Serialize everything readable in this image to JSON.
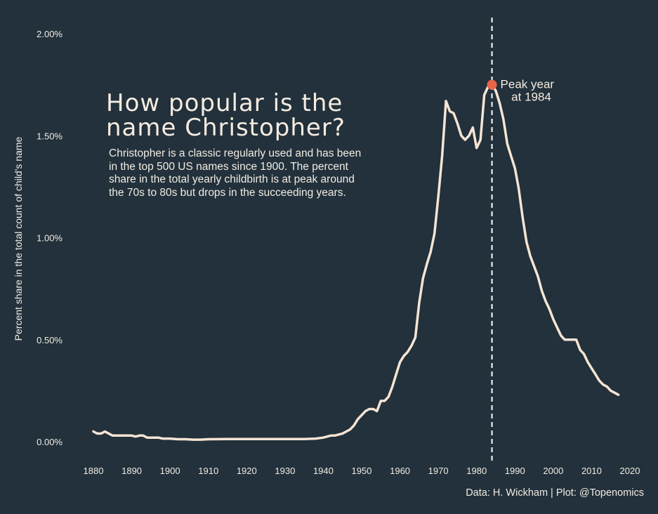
{
  "chart_data": {
    "type": "line",
    "title": "How popular is the name Christopher?",
    "subtitle": "Christopher is a classic regularly used and has been in the top 500 US names since 1900. The percent share in the total yearly childbirth is at peak around the 70s to 80s but drops in the succeeding years.",
    "ylabel": "Percent share in the total count of child's name",
    "xlabel": "",
    "caption": "Data: H. Wickham | Plot: @Topenomics",
    "xlim": [
      1880,
      2017
    ],
    "ylim": [
      0,
      2.0
    ],
    "x_ticks": [
      1880,
      1890,
      1900,
      1910,
      1920,
      1930,
      1940,
      1950,
      1960,
      1970,
      1980,
      1990,
      2000,
      2010,
      2020
    ],
    "y_ticks": [
      0,
      0.5,
      1.0,
      1.5,
      2.0
    ],
    "y_tick_labels": [
      "0.00%",
      "0.50%",
      "1.00%",
      "1.50%",
      "2.00%"
    ],
    "grid": false,
    "legend": "none",
    "series": [
      {
        "color": "#f7e4d4",
        "points": [
          [
            1880,
            0.05
          ],
          [
            1881,
            0.04
          ],
          [
            1882,
            0.04
          ],
          [
            1883,
            0.05
          ],
          [
            1884,
            0.04
          ],
          [
            1885,
            0.03
          ],
          [
            1886,
            0.03
          ],
          [
            1887,
            0.03
          ],
          [
            1888,
            0.03
          ],
          [
            1889,
            0.03
          ],
          [
            1890,
            0.03
          ],
          [
            1891,
            0.025
          ],
          [
            1892,
            0.03
          ],
          [
            1893,
            0.03
          ],
          [
            1894,
            0.02
          ],
          [
            1895,
            0.02
          ],
          [
            1896,
            0.02
          ],
          [
            1897,
            0.02
          ],
          [
            1898,
            0.015
          ],
          [
            1899,
            0.015
          ],
          [
            1900,
            0.015
          ],
          [
            1902,
            0.012
          ],
          [
            1904,
            0.012
          ],
          [
            1906,
            0.01
          ],
          [
            1908,
            0.01
          ],
          [
            1910,
            0.012
          ],
          [
            1915,
            0.013
          ],
          [
            1920,
            0.013
          ],
          [
            1925,
            0.013
          ],
          [
            1930,
            0.013
          ],
          [
            1935,
            0.013
          ],
          [
            1938,
            0.015
          ],
          [
            1940,
            0.02
          ],
          [
            1941,
            0.025
          ],
          [
            1942,
            0.03
          ],
          [
            1943,
            0.03
          ],
          [
            1944,
            0.035
          ],
          [
            1945,
            0.04
          ],
          [
            1946,
            0.05
          ],
          [
            1947,
            0.06
          ],
          [
            1948,
            0.08
          ],
          [
            1949,
            0.11
          ],
          [
            1950,
            0.13
          ],
          [
            1951,
            0.15
          ],
          [
            1952,
            0.16
          ],
          [
            1953,
            0.16
          ],
          [
            1954,
            0.15
          ],
          [
            1955,
            0.2
          ],
          [
            1956,
            0.2
          ],
          [
            1957,
            0.22
          ],
          [
            1958,
            0.27
          ],
          [
            1959,
            0.33
          ],
          [
            1960,
            0.39
          ],
          [
            1961,
            0.42
          ],
          [
            1962,
            0.44
          ],
          [
            1963,
            0.47
          ],
          [
            1964,
            0.51
          ],
          [
            1965,
            0.68
          ],
          [
            1966,
            0.8
          ],
          [
            1967,
            0.87
          ],
          [
            1968,
            0.93
          ],
          [
            1969,
            1.02
          ],
          [
            1970,
            1.2
          ],
          [
            1971,
            1.4
          ],
          [
            1972,
            1.67
          ],
          [
            1973,
            1.62
          ],
          [
            1974,
            1.61
          ],
          [
            1975,
            1.56
          ],
          [
            1976,
            1.5
          ],
          [
            1977,
            1.48
          ],
          [
            1978,
            1.5
          ],
          [
            1979,
            1.54
          ],
          [
            1980,
            1.44
          ],
          [
            1981,
            1.48
          ],
          [
            1982,
            1.7
          ],
          [
            1983,
            1.74
          ],
          [
            1984,
            1.75
          ],
          [
            1985,
            1.72
          ],
          [
            1986,
            1.66
          ],
          [
            1987,
            1.58
          ],
          [
            1988,
            1.46
          ],
          [
            1989,
            1.4
          ],
          [
            1990,
            1.34
          ],
          [
            1991,
            1.24
          ],
          [
            1992,
            1.1
          ],
          [
            1993,
            0.98
          ],
          [
            1994,
            0.91
          ],
          [
            1995,
            0.86
          ],
          [
            1996,
            0.81
          ],
          [
            1997,
            0.74
          ],
          [
            1998,
            0.69
          ],
          [
            1999,
            0.65
          ],
          [
            2000,
            0.6
          ],
          [
            2001,
            0.56
          ],
          [
            2002,
            0.52
          ],
          [
            2003,
            0.5
          ],
          [
            2004,
            0.5
          ],
          [
            2005,
            0.5
          ],
          [
            2006,
            0.5
          ],
          [
            2007,
            0.45
          ],
          [
            2008,
            0.43
          ],
          [
            2009,
            0.39
          ],
          [
            2010,
            0.36
          ],
          [
            2011,
            0.33
          ],
          [
            2012,
            0.3
          ],
          [
            2013,
            0.28
          ],
          [
            2014,
            0.27
          ],
          [
            2015,
            0.25
          ],
          [
            2016,
            0.24
          ],
          [
            2017,
            0.23
          ]
        ]
      }
    ],
    "highlight": {
      "year": 1984,
      "value": 1.75,
      "color": "#e8654a",
      "line": "dashed vertical",
      "label_line1": "Peak year",
      "label_line2": "at 1984"
    }
  }
}
